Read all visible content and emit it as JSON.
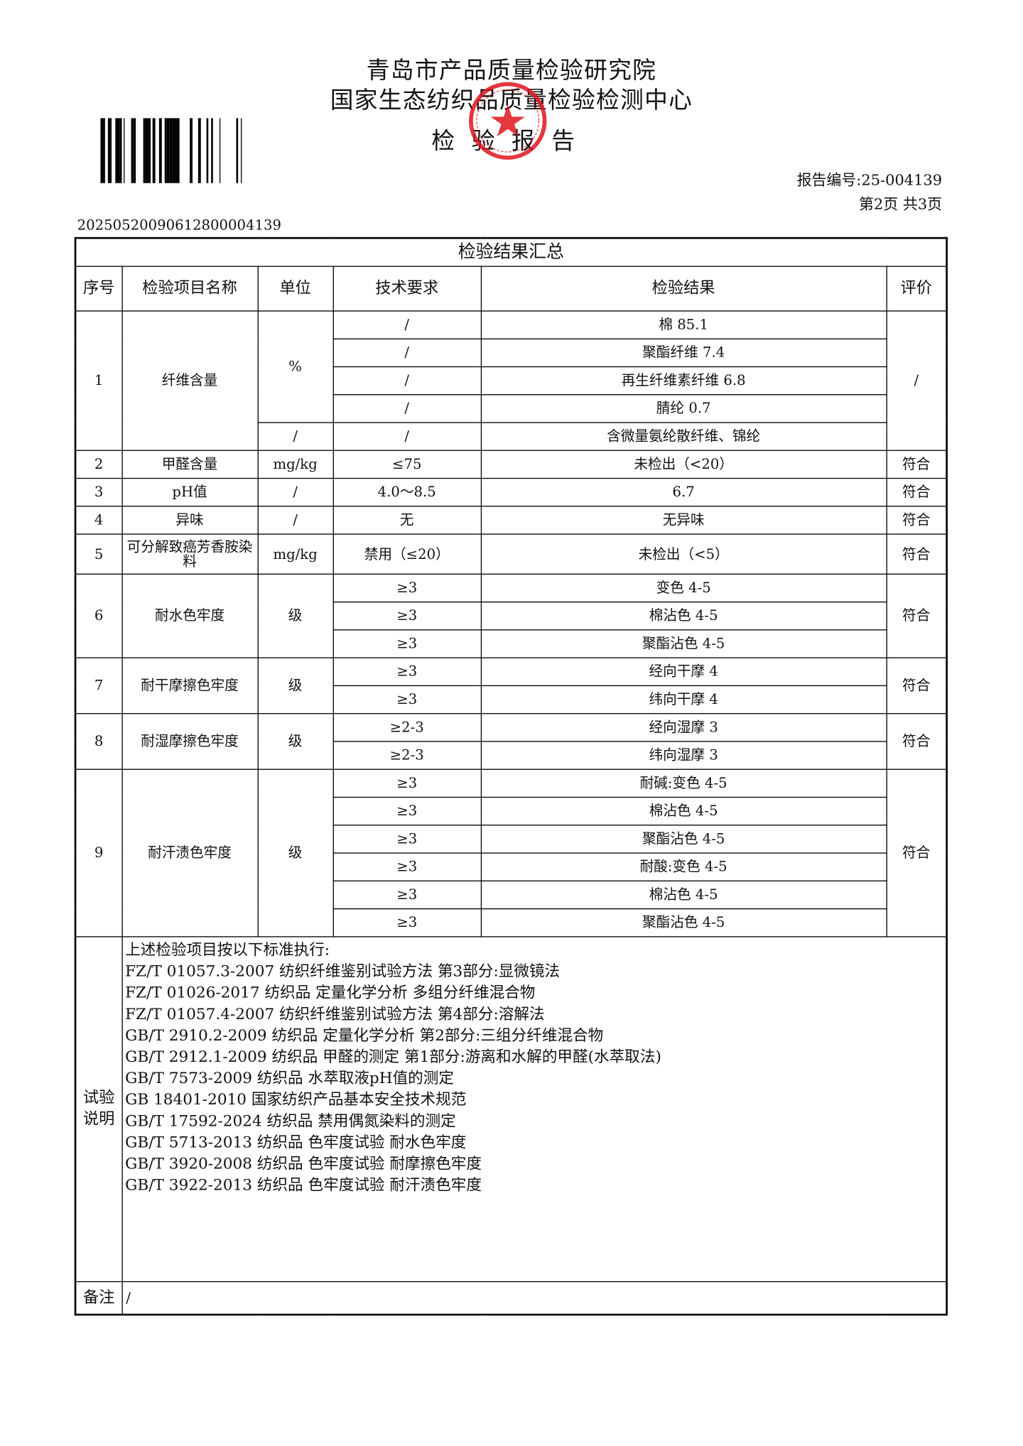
{
  "header": {
    "org_line1": "青岛市产品质量检验研究院",
    "org_line2": "国家生态纺织品质量检验检测中心",
    "doc_title": "检验报告",
    "report_no": "报告编号:25-004139",
    "page_info": "第2页  共3页",
    "barcode_number": "20250520090612800004139",
    "stamp_color": "#e0141e"
  },
  "table": {
    "caption": "检验结果汇总",
    "columns": [
      "序号",
      "检验项目名称",
      "单位",
      "技术要求",
      "检验结果",
      "评价"
    ],
    "items": [
      {
        "no": "1",
        "name": "纤维含量",
        "eval": "/",
        "rows": [
          {
            "unit": "%",
            "req": "/",
            "result": "棉 85.1"
          },
          {
            "unit": "%",
            "req": "/",
            "result": "聚酯纤维 7.4"
          },
          {
            "unit": "%",
            "req": "/",
            "result": "再生纤维素纤维 6.8"
          },
          {
            "unit": "%",
            "req": "/",
            "result": "腈纶 0.7"
          },
          {
            "unit": "/",
            "req": "/",
            "result": "含微量氨纶散纤维、锦纶"
          }
        ]
      },
      {
        "no": "2",
        "name": "甲醛含量",
        "eval": "符合",
        "rows": [
          {
            "unit": "mg/kg",
            "req": "≤75",
            "result": "未检出（<20）"
          }
        ]
      },
      {
        "no": "3",
        "name": "pH值",
        "eval": "符合",
        "rows": [
          {
            "unit": "/",
            "req": "4.0～8.5",
            "result": "6.7"
          }
        ]
      },
      {
        "no": "4",
        "name": "异味",
        "eval": "符合",
        "rows": [
          {
            "unit": "/",
            "req": "无",
            "result": "无异味"
          }
        ]
      },
      {
        "no": "5",
        "name": "可分解致癌芳香胺染料",
        "eval": "符合",
        "tall": true,
        "rows": [
          {
            "unit": "mg/kg",
            "req": "禁用（≤20）",
            "result": "未检出（<5）"
          }
        ]
      },
      {
        "no": "6",
        "name": "耐水色牢度",
        "eval": "符合",
        "rows": [
          {
            "unit": "级",
            "req": "≥3",
            "result": "变色 4-5"
          },
          {
            "unit": "级",
            "req": "≥3",
            "result": "棉沾色 4-5"
          },
          {
            "unit": "级",
            "req": "≥3",
            "result": "聚酯沾色 4-5"
          }
        ]
      },
      {
        "no": "7",
        "name": "耐干摩擦色牢度",
        "eval": "符合",
        "rows": [
          {
            "unit": "级",
            "req": "≥3",
            "result": "经向干摩 4"
          },
          {
            "unit": "级",
            "req": "≥3",
            "result": "纬向干摩 4"
          }
        ]
      },
      {
        "no": "8",
        "name": "耐湿摩擦色牢度",
        "eval": "符合",
        "rows": [
          {
            "unit": "级",
            "req": "≥2-3",
            "result": "经向湿摩 3"
          },
          {
            "unit": "级",
            "req": "≥2-3",
            "result": "纬向湿摩 3"
          }
        ]
      },
      {
        "no": "9",
        "name": "耐汗渍色牢度",
        "eval": "符合",
        "rows": [
          {
            "unit": "级",
            "req": "≥3",
            "result": "耐碱:变色 4-5"
          },
          {
            "unit": "级",
            "req": "≥3",
            "result": "棉沾色 4-5"
          },
          {
            "unit": "级",
            "req": "≥3",
            "result": "聚酯沾色 4-5"
          },
          {
            "unit": "级",
            "req": "≥3",
            "result": "耐酸:变色 4-5"
          },
          {
            "unit": "级",
            "req": "≥3",
            "result": "棉沾色 4-5"
          },
          {
            "unit": "级",
            "req": "≥3",
            "result": "聚酯沾色 4-5"
          }
        ]
      }
    ],
    "notes_label": "试验说明",
    "notes": [
      "上述检验项目按以下标准执行:",
      "FZ/T 01057.3-2007 纺织纤维鉴别试验方法 第3部分:显微镜法",
      "FZ/T 01026-2017 纺织品 定量化学分析 多组分纤维混合物",
      "FZ/T 01057.4-2007 纺织纤维鉴别试验方法 第4部分:溶解法",
      "GB/T 2910.2-2009 纺织品 定量化学分析 第2部分:三组分纤维混合物",
      "GB/T 2912.1-2009 纺织品 甲醛的测定 第1部分:游离和水解的甲醛(水萃取法)",
      "GB/T 7573-2009 纺织品 水萃取液pH值的测定",
      "GB 18401-2010 国家纺织产品基本安全技术规范",
      "GB/T 17592-2024 纺织品 禁用偶氮染料的测定",
      "GB/T 5713-2013 纺织品 色牢度试验 耐水色牢度",
      "GB/T 3920-2008 纺织品 色牢度试验 耐摩擦色牢度",
      "GB/T 3922-2013 纺织品 色牢度试验 耐汗渍色牢度"
    ],
    "remark_label": "备注",
    "remark": "/"
  }
}
